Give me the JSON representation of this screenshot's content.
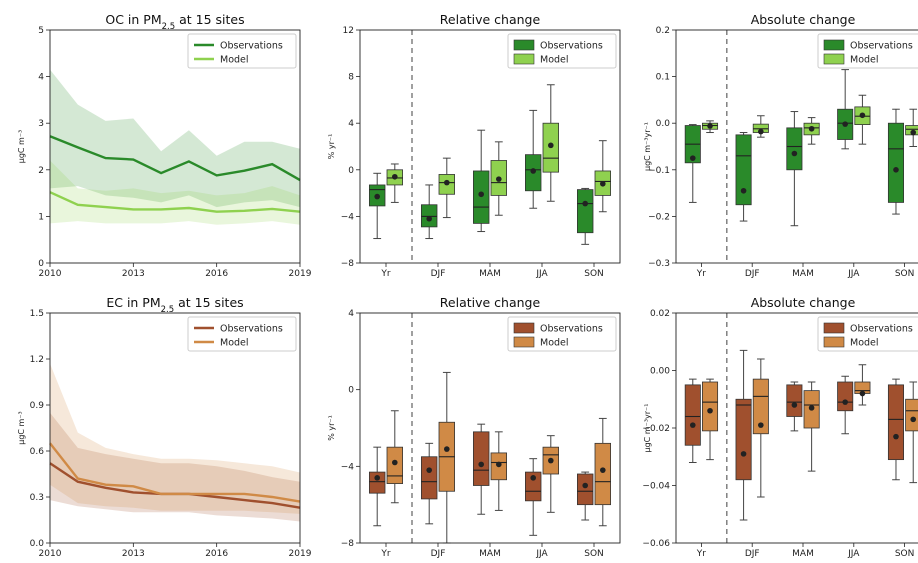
{
  "colors": {
    "oc_obs": "#2a8a2a",
    "oc_model": "#8fd14f",
    "ec_obs": "#a0502e",
    "ec_model": "#d08a46"
  },
  "chart_data": [
    {
      "id": "oc-trend",
      "type": "line",
      "title": "OC in PM",
      "title_sub": "2.5",
      "title_suffix": " at 15 sites",
      "ylabel": "μgC m⁻³",
      "xlim": [
        2010,
        2019
      ],
      "ylim": [
        0,
        5
      ],
      "xticks": [
        "2010",
        "2013",
        "2016",
        "2019"
      ],
      "yticks": [
        "0",
        "1",
        "2",
        "3",
        "4",
        "5"
      ],
      "legend": "top-right",
      "x": [
        2010,
        2011,
        2012,
        2013,
        2014,
        2015,
        2016,
        2017,
        2018,
        2019
      ],
      "series": [
        {
          "name": "Observations",
          "color": "#2a8a2a",
          "values": [
            2.72,
            2.48,
            2.25,
            2.22,
            1.93,
            2.18,
            1.88,
            1.98,
            2.12,
            1.78
          ],
          "upper": [
            4.15,
            3.4,
            3.05,
            3.1,
            2.4,
            2.85,
            2.3,
            2.6,
            2.6,
            2.45
          ],
          "lower": [
            1.6,
            1.65,
            1.45,
            1.4,
            1.3,
            1.45,
            1.2,
            1.3,
            1.35,
            1.2
          ]
        },
        {
          "name": "Model",
          "color": "#8fd14f",
          "values": [
            1.52,
            1.25,
            1.2,
            1.15,
            1.15,
            1.18,
            1.1,
            1.12,
            1.16,
            1.1
          ],
          "upper": [
            2.2,
            1.6,
            1.55,
            1.6,
            1.5,
            1.55,
            1.45,
            1.5,
            1.65,
            1.45
          ],
          "lower": [
            0.85,
            0.9,
            0.85,
            0.85,
            0.85,
            0.9,
            0.82,
            0.85,
            0.9,
            0.82
          ]
        }
      ]
    },
    {
      "id": "oc-relative",
      "type": "box",
      "title": "Relative change",
      "ylabel": "% yr⁻¹",
      "ylim": [
        -8,
        12
      ],
      "yticks": [
        "−8",
        "−4",
        "0",
        "4",
        "8",
        "12"
      ],
      "ytick_values": [
        -8,
        -4,
        0,
        4,
        8,
        12
      ],
      "categories": [
        "Yr",
        "DJF",
        "MAM",
        "JJA",
        "SON"
      ],
      "legend": "top-right",
      "series": [
        {
          "name": "Observations",
          "color": "#2a8a2a",
          "boxes": [
            {
              "wlo": -5.9,
              "q1": -3.1,
              "med": -1.7,
              "q3": -1.3,
              "whi": -0.3,
              "mean": -2.3
            },
            {
              "wlo": -5.9,
              "q1": -4.9,
              "med": -4.0,
              "q3": -3.0,
              "whi": -1.3,
              "mean": -4.2
            },
            {
              "wlo": -5.3,
              "q1": -4.6,
              "med": -3.2,
              "q3": -0.1,
              "whi": 3.4,
              "mean": -2.1
            },
            {
              "wlo": -3.3,
              "q1": -1.8,
              "med": 0.0,
              "q3": 1.3,
              "whi": 5.1,
              "mean": -0.1
            },
            {
              "wlo": -6.4,
              "q1": -5.4,
              "med": -2.9,
              "q3": -1.7,
              "whi": -1.6,
              "mean": -2.9
            }
          ]
        },
        {
          "name": "Model",
          "color": "#8fd14f",
          "boxes": [
            {
              "wlo": -2.8,
              "q1": -1.3,
              "med": -0.7,
              "q3": 0.0,
              "whi": 0.5,
              "mean": -0.6
            },
            {
              "wlo": -4.1,
              "q1": -2.1,
              "med": -1.1,
              "q3": -0.4,
              "whi": 1.0,
              "mean": -1.1
            },
            {
              "wlo": -3.9,
              "q1": -2.2,
              "med": -1.1,
              "q3": 0.8,
              "whi": 2.4,
              "mean": -0.8
            },
            {
              "wlo": -2.7,
              "q1": -0.2,
              "med": 1.0,
              "q3": 4.0,
              "whi": 7.3,
              "mean": 2.1
            },
            {
              "wlo": -3.6,
              "q1": -2.2,
              "med": -1.0,
              "q3": -0.1,
              "whi": 2.5,
              "mean": -1.2
            }
          ]
        }
      ]
    },
    {
      "id": "oc-absolute",
      "type": "box",
      "title": "Absolute change",
      "ylabel": "μgC m⁻³yr⁻¹",
      "ylim": [
        -0.3,
        0.2
      ],
      "yticks": [
        "−0.3",
        "−0.2",
        "−0.1",
        "0.0",
        "0.1",
        "0.2"
      ],
      "ytick_values": [
        -0.3,
        -0.2,
        -0.1,
        0.0,
        0.1,
        0.2
      ],
      "categories": [
        "Yr",
        "DJF",
        "MAM",
        "JJA",
        "SON"
      ],
      "legend": "top-right",
      "series": [
        {
          "name": "Observations",
          "color": "#2a8a2a",
          "boxes": [
            {
              "wlo": -0.17,
              "q1": -0.085,
              "med": -0.045,
              "q3": -0.005,
              "whi": -0.003,
              "mean": -0.075
            },
            {
              "wlo": -0.21,
              "q1": -0.175,
              "med": -0.07,
              "q3": -0.025,
              "whi": -0.02,
              "mean": -0.145
            },
            {
              "wlo": -0.22,
              "q1": -0.1,
              "med": -0.05,
              "q3": -0.01,
              "whi": 0.025,
              "mean": -0.065
            },
            {
              "wlo": -0.055,
              "q1": -0.035,
              "med": 0.0,
              "q3": 0.03,
              "whi": 0.115,
              "mean": -0.002
            },
            {
              "wlo": -0.195,
              "q1": -0.17,
              "med": -0.055,
              "q3": 0.0,
              "whi": 0.03,
              "mean": -0.1
            }
          ]
        },
        {
          "name": "Model",
          "color": "#8fd14f",
          "boxes": [
            {
              "wlo": -0.02,
              "q1": -0.013,
              "med": -0.005,
              "q3": 0.0,
              "whi": 0.005,
              "mean": -0.006
            },
            {
              "wlo": -0.03,
              "q1": -0.02,
              "med": -0.012,
              "q3": -0.002,
              "whi": 0.016,
              "mean": -0.018
            },
            {
              "wlo": -0.045,
              "q1": -0.025,
              "med": -0.01,
              "q3": 0.0,
              "whi": 0.012,
              "mean": -0.012
            },
            {
              "wlo": -0.045,
              "q1": -0.003,
              "med": 0.015,
              "q3": 0.035,
              "whi": 0.06,
              "mean": 0.017
            },
            {
              "wlo": -0.05,
              "q1": -0.025,
              "med": -0.013,
              "q3": -0.005,
              "whi": 0.03,
              "mean": -0.02
            }
          ]
        }
      ]
    },
    {
      "id": "ec-trend",
      "type": "line",
      "title": "EC in PM",
      "title_sub": "2.5",
      "title_suffix": " at 15 sites",
      "ylabel": "μgC m⁻³",
      "xlim": [
        2010,
        2019
      ],
      "ylim": [
        0,
        1.5
      ],
      "xticks": [
        "2010",
        "2013",
        "2016",
        "2019"
      ],
      "yticks": [
        "0.0",
        "0.3",
        "0.6",
        "0.9",
        "1.2",
        "1.5"
      ],
      "legend": "top-right",
      "x": [
        2010,
        2011,
        2012,
        2013,
        2014,
        2015,
        2016,
        2017,
        2018,
        2019
      ],
      "series": [
        {
          "name": "Observations",
          "color": "#a0502e",
          "values": [
            0.52,
            0.4,
            0.36,
            0.33,
            0.32,
            0.32,
            0.3,
            0.28,
            0.26,
            0.23
          ],
          "upper": [
            0.85,
            0.62,
            0.58,
            0.55,
            0.52,
            0.52,
            0.5,
            0.47,
            0.43,
            0.4
          ],
          "lower": [
            0.28,
            0.24,
            0.22,
            0.2,
            0.2,
            0.2,
            0.18,
            0.17,
            0.16,
            0.14
          ]
        },
        {
          "name": "Model",
          "color": "#d08a46",
          "values": [
            0.65,
            0.42,
            0.38,
            0.37,
            0.32,
            0.32,
            0.32,
            0.32,
            0.3,
            0.27
          ],
          "upper": [
            1.17,
            0.72,
            0.62,
            0.58,
            0.55,
            0.55,
            0.54,
            0.52,
            0.5,
            0.46
          ],
          "lower": [
            0.38,
            0.26,
            0.24,
            0.23,
            0.21,
            0.21,
            0.21,
            0.21,
            0.2,
            0.19
          ]
        }
      ]
    },
    {
      "id": "ec-relative",
      "type": "box",
      "title": "Relative change",
      "ylabel": "% yr⁻¹",
      "ylim": [
        -8,
        4
      ],
      "yticks": [
        "−8",
        "−4",
        "0",
        "4"
      ],
      "ytick_values": [
        -8,
        -4,
        0,
        4
      ],
      "categories": [
        "Yr",
        "DJF",
        "MAM",
        "JJA",
        "SON"
      ],
      "legend": "top-right",
      "series": [
        {
          "name": "Observations",
          "color": "#a0502e",
          "boxes": [
            {
              "wlo": -7.1,
              "q1": -5.4,
              "med": -4.8,
              "q3": -4.3,
              "whi": -3.0,
              "mean": -4.6
            },
            {
              "wlo": -7.0,
              "q1": -5.7,
              "med": -4.8,
              "q3": -3.5,
              "whi": -2.8,
              "mean": -4.2
            },
            {
              "wlo": -6.5,
              "q1": -5.0,
              "med": -4.2,
              "q3": -2.2,
              "whi": -1.8,
              "mean": -3.9
            },
            {
              "wlo": -7.6,
              "q1": -5.8,
              "med": -5.3,
              "q3": -4.3,
              "whi": -3.6,
              "mean": -4.6
            },
            {
              "wlo": -6.8,
              "q1": -6.0,
              "med": -5.3,
              "q3": -4.4,
              "whi": -4.3,
              "mean": -5.0
            }
          ]
        },
        {
          "name": "Model",
          "color": "#d08a46",
          "boxes": [
            {
              "wlo": -5.9,
              "q1": -4.9,
              "med": -4.5,
              "q3": -3.0,
              "whi": -1.1,
              "mean": -3.8
            },
            {
              "wlo": -8.0,
              "q1": -5.3,
              "med": -3.5,
              "q3": -1.7,
              "whi": 0.9,
              "mean": -3.1
            },
            {
              "wlo": -6.3,
              "q1": -4.7,
              "med": -3.8,
              "q3": -3.3,
              "whi": -2.2,
              "mean": -3.9
            },
            {
              "wlo": -6.4,
              "q1": -4.4,
              "med": -3.4,
              "q3": -3.0,
              "whi": -2.4,
              "mean": -3.7
            },
            {
              "wlo": -7.1,
              "q1": -6.0,
              "med": -4.8,
              "q3": -2.8,
              "whi": -1.5,
              "mean": -4.2
            }
          ]
        }
      ]
    },
    {
      "id": "ec-absolute",
      "type": "box",
      "title": "Absolute change",
      "ylabel": "μgC m⁻³yr⁻¹",
      "ylim": [
        -0.06,
        0.02
      ],
      "yticks": [
        "−0.06",
        "−0.04",
        "−0.02",
        "0.00",
        "0.02"
      ],
      "ytick_values": [
        -0.06,
        -0.04,
        -0.02,
        0.0,
        0.02
      ],
      "categories": [
        "Yr",
        "DJF",
        "MAM",
        "JJA",
        "SON"
      ],
      "legend": "top-right",
      "series": [
        {
          "name": "Observations",
          "color": "#a0502e",
          "boxes": [
            {
              "wlo": -0.032,
              "q1": -0.026,
              "med": -0.016,
              "q3": -0.005,
              "whi": -0.003,
              "mean": -0.019
            },
            {
              "wlo": -0.052,
              "q1": -0.038,
              "med": -0.012,
              "q3": -0.01,
              "whi": 0.007,
              "mean": -0.029
            },
            {
              "wlo": -0.021,
              "q1": -0.016,
              "med": -0.011,
              "q3": -0.005,
              "whi": -0.004,
              "mean": -0.012
            },
            {
              "wlo": -0.022,
              "q1": -0.014,
              "med": -0.011,
              "q3": -0.004,
              "whi": -0.002,
              "mean": -0.011
            },
            {
              "wlo": -0.038,
              "q1": -0.031,
              "med": -0.017,
              "q3": -0.005,
              "whi": -0.003,
              "mean": -0.023
            }
          ]
        },
        {
          "name": "Model",
          "color": "#d08a46",
          "boxes": [
            {
              "wlo": -0.031,
              "q1": -0.021,
              "med": -0.011,
              "q3": -0.004,
              "whi": -0.003,
              "mean": -0.014
            },
            {
              "wlo": -0.044,
              "q1": -0.022,
              "med": -0.009,
              "q3": -0.003,
              "whi": 0.004,
              "mean": -0.019
            },
            {
              "wlo": -0.035,
              "q1": -0.02,
              "med": -0.012,
              "q3": -0.007,
              "whi": -0.004,
              "mean": -0.013
            },
            {
              "wlo": -0.012,
              "q1": -0.008,
              "med": -0.007,
              "q3": -0.004,
              "whi": 0.002,
              "mean": -0.008
            },
            {
              "wlo": -0.039,
              "q1": -0.021,
              "med": -0.014,
              "q3": -0.01,
              "whi": -0.004,
              "mean": -0.017
            }
          ]
        }
      ]
    }
  ]
}
